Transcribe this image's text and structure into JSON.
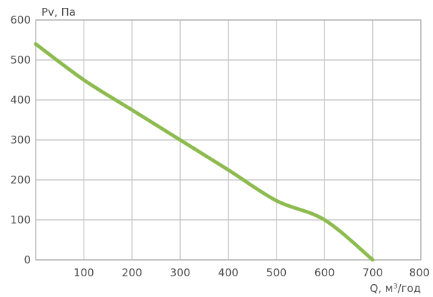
{
  "chart_data": {
    "type": "line",
    "xlabel": "Q, м",
    "xlabel_sup": "3",
    "xlabel_suffix": "/год",
    "ylabel": "Pv, Па",
    "xlim": [
      0,
      800
    ],
    "ylim": [
      0,
      600
    ],
    "xticks": [
      100,
      200,
      300,
      400,
      500,
      600,
      700,
      800
    ],
    "yticks": [
      0,
      100,
      200,
      300,
      400,
      500,
      600
    ],
    "grid": true,
    "series": [
      {
        "color": "#8dbb4f",
        "x": [
          0,
          100,
          200,
          300,
          400,
          500,
          600,
          700
        ],
        "y": [
          540,
          450,
          375,
          300,
          225,
          148,
          100,
          0
        ]
      }
    ]
  }
}
